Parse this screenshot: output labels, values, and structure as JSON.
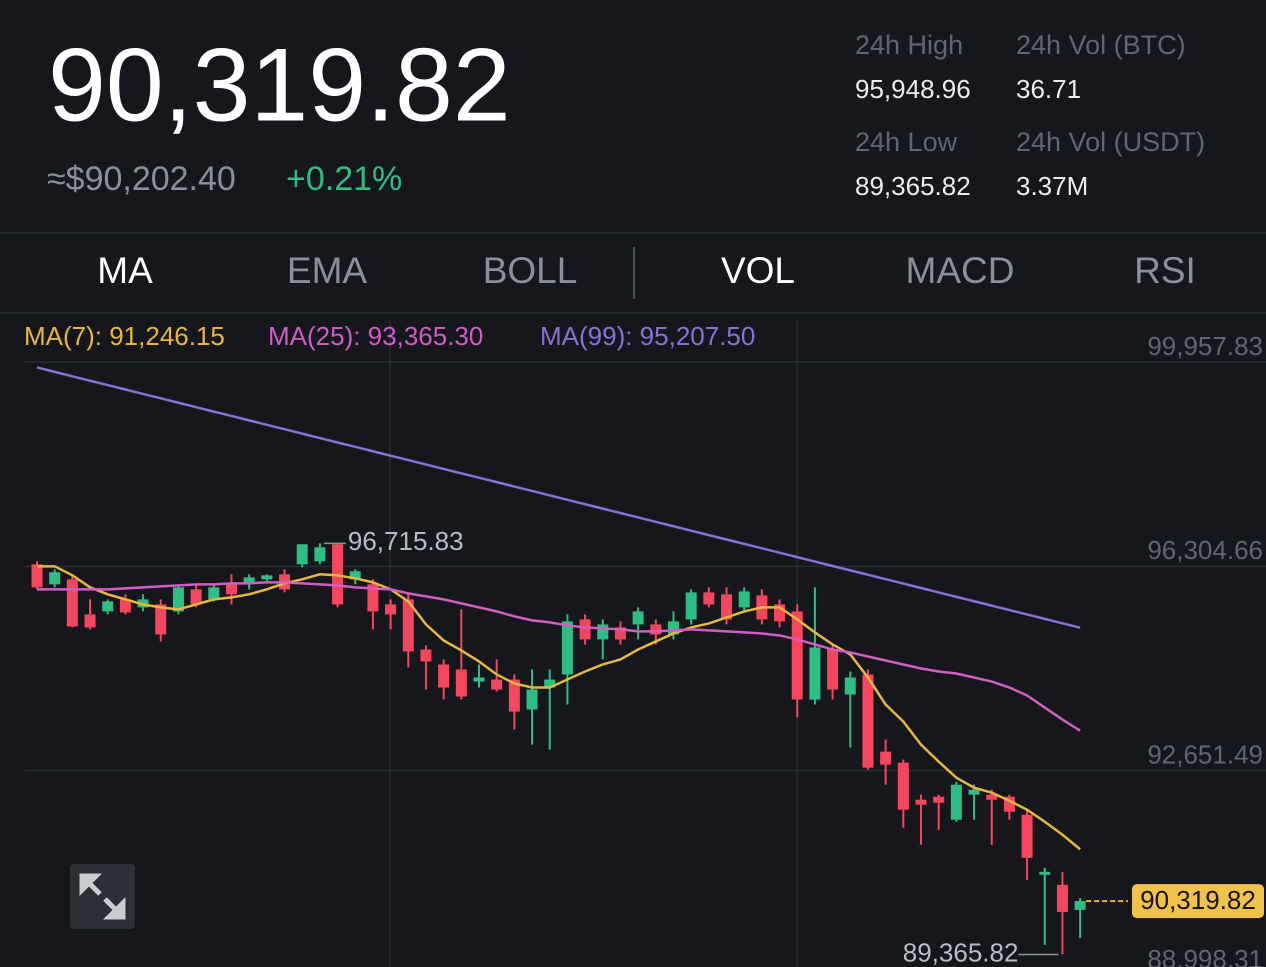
{
  "header": {
    "price": "90,319.82",
    "approx": "≈$90,202.40",
    "change": "+0.21%",
    "stats": [
      {
        "label": "24h High",
        "value": "95,948.96"
      },
      {
        "label": "24h Vol (BTC)",
        "value": "36.71"
      },
      {
        "label": "24h Low",
        "value": "89,365.82"
      },
      {
        "label": "24h Vol (USDT)",
        "value": "3.37M"
      }
    ]
  },
  "tabs": [
    {
      "label": "MA",
      "active": true
    },
    {
      "label": "EMA",
      "active": false
    },
    {
      "label": "BOLL",
      "active": false
    },
    {
      "label": "VOL",
      "active": true
    },
    {
      "label": "MACD",
      "active": false
    },
    {
      "label": "RSI",
      "active": false
    }
  ],
  "chart_data": {
    "type": "candlestick",
    "ylim": [
      88998.31,
      99957.83
    ],
    "yticks": [
      {
        "value": 99957.83,
        "label": "99,957.83"
      },
      {
        "value": 96304.66,
        "label": "96,304.66"
      },
      {
        "value": 92651.49,
        "label": "92,651.49"
      },
      {
        "value": 88998.31,
        "label": "88,998.31"
      }
    ],
    "grid": true,
    "up_color": "#2ebd85",
    "down_color": "#f6465d",
    "open": [
      96341,
      95983,
      96072,
      95445,
      95499,
      95714,
      95571,
      95624,
      95499,
      95893,
      95714,
      95983,
      95983,
      96072,
      96162,
      96341,
      96395,
      96699,
      96072,
      95983,
      95624,
      95714,
      94818,
      94550,
      94460,
      94245,
      94281,
      94281,
      93744,
      94138,
      94371,
      95356,
      94998,
      95213,
      95266,
      95266,
      95087,
      95356,
      95839,
      95804,
      95571,
      95786,
      95624,
      95499,
      93923,
      94818,
      94013,
      94371,
      92992,
      92795,
      92132,
      92186,
      91774,
      92222,
      92222,
      92186,
      91863,
      90789,
      90610,
      90162
    ],
    "high": [
      96395,
      96250,
      96162,
      95714,
      95714,
      95804,
      95804,
      95714,
      95983,
      95983,
      95983,
      96162,
      96162,
      96162,
      96250,
      96699,
      96715.83,
      96700,
      96250,
      96072,
      95714,
      95804,
      94890,
      94640,
      95535,
      94550,
      94640,
      94371,
      94460,
      94460,
      95445,
      95445,
      95356,
      95320,
      95571,
      95356,
      95499,
      95893,
      95929,
      95929,
      95929,
      95893,
      95714,
      95624,
      95929,
      94890,
      94424,
      94460,
      93206,
      92848,
      92222,
      92222,
      92454,
      92401,
      92311,
      92222,
      91953,
      90914,
      90842,
      90374
    ],
    "low": [
      95893,
      95929,
      95213,
      95177,
      95445,
      95445,
      95499,
      94960,
      95445,
      95571,
      95678,
      95624,
      95893,
      96036,
      95839,
      96287,
      96341,
      95571,
      95983,
      95177,
      95177,
      94496,
      94102,
      93923,
      93923,
      94138,
      94066,
      93386,
      93117,
      93027,
      93834,
      94908,
      94640,
      94908,
      94998,
      94908,
      94998,
      95266,
      95571,
      95266,
      95499,
      95266,
      95213,
      93601,
      93834,
      93923,
      93063,
      92669,
      92401,
      91630,
      91325,
      91594,
      91738,
      91774,
      91325,
      91774,
      90699,
      89535,
      89365.82,
      89660
    ],
    "close": [
      95929,
      96198,
      95230,
      95213,
      95678,
      95481,
      95714,
      95087,
      95929,
      95624,
      95929,
      95804,
      96108,
      96144,
      95893,
      96699,
      96645,
      95624,
      96216,
      95499,
      95445,
      94783,
      94604,
      94138,
      93977,
      94317,
      94102,
      93708,
      94102,
      94281,
      95320,
      94998,
      95266,
      94998,
      95499,
      95087,
      95320,
      95839,
      95624,
      95356,
      95857,
      95356,
      95320,
      93923,
      94854,
      94102,
      94317,
      92705,
      92759,
      91953,
      92042,
      92078,
      92401,
      92311,
      92132,
      91917,
      91093,
      90842,
      90126,
      90319.82
    ],
    "series": [
      {
        "name": "MA(7): 91,246.15",
        "color": "#e8b63c",
        "values": [
          96305,
          96305,
          96144,
          95929,
          95804,
          95714,
          95624,
          95571,
          95535,
          95624,
          95714,
          95750,
          95804,
          95893,
          96001,
          96072,
          96162,
          96144,
          96090,
          96018,
          95893,
          95678,
          95266,
          94980,
          94801,
          94604,
          94371,
          94210,
          94138,
          94138,
          94281,
          94424,
          94550,
          94639,
          94818,
          94962,
          95105,
          95213,
          95284,
          95392,
          95499,
          95571,
          95571,
          95356,
          95123,
          94908,
          94729,
          94317,
          93833,
          93529,
          93117,
          92813,
          92526,
          92347,
          92257,
          92114,
          91953,
          91738,
          91505,
          91246.15
        ]
      },
      {
        "name": "MA(25): 93,365.30",
        "color": "#d05cc4",
        "values": [
          95893,
          95893,
          95893,
          95893,
          95893,
          95911,
          95929,
          95947,
          95965,
          95983,
          95983,
          96001,
          96001,
          96018,
          96018,
          96001,
          95983,
          95965,
          95929,
          95911,
          95893,
          95821,
          95768,
          95714,
          95642,
          95571,
          95499,
          95410,
          95338,
          95302,
          95248,
          95213,
          95195,
          95177,
          95141,
          95141,
          95159,
          95177,
          95159,
          95141,
          95123,
          95105,
          95069,
          94998,
          94908,
          94818,
          94765,
          94693,
          94621,
          94550,
          94478,
          94424,
          94389,
          94317,
          94245,
          94138,
          93995,
          93780,
          93565,
          93365.3
        ]
      },
      {
        "name": "MA(99): 95,207.50",
        "color": "#8a6fd6",
        "values": [
          99860,
          99781,
          99702,
          99623,
          99545,
          99466,
          99387,
          99308,
          99229,
          99150,
          99071,
          98993,
          98914,
          98835,
          98756,
          98677,
          98598,
          98519,
          98441,
          98362,
          98283,
          98204,
          98125,
          98046,
          97967,
          97889,
          97810,
          97731,
          97652,
          97573,
          97494,
          97415,
          97336,
          97258,
          97179,
          97100,
          97021,
          96942,
          96863,
          96784,
          96706,
          96627,
          96548,
          96469,
          96390,
          96311,
          96232,
          96154,
          96075,
          95996,
          95917,
          95838,
          95759,
          95680,
          95602,
          95523,
          95444,
          95365,
          95286,
          95207.5
        ]
      }
    ],
    "max_label": "96,715.83",
    "min_label": "89,365.82",
    "last_label": "90,319.82"
  }
}
